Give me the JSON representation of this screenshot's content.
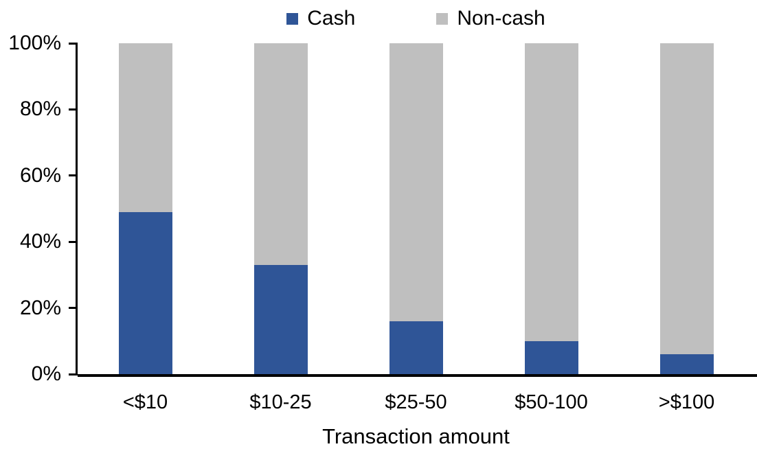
{
  "chart_data": {
    "type": "bar",
    "subtype": "stacked-100",
    "title": "",
    "xlabel": "Transaction amount",
    "ylabel": "",
    "categories": [
      "<$10",
      "$10-25",
      "$25-50",
      "$50-100",
      ">$100"
    ],
    "series": [
      {
        "name": "Cash",
        "color": "#2F5597",
        "values": [
          49,
          33,
          16,
          10,
          6
        ]
      },
      {
        "name": "Non-cash",
        "color": "#BFBFBF",
        "values": [
          51,
          67,
          84,
          90,
          94
        ]
      }
    ],
    "stack_total": 100,
    "ylim": [
      0,
      100
    ],
    "y_ticks": [
      {
        "value": 0,
        "label": "0%"
      },
      {
        "value": 20,
        "label": "20%"
      },
      {
        "value": 40,
        "label": "40%"
      },
      {
        "value": 60,
        "label": "60%"
      },
      {
        "value": 80,
        "label": "80%"
      },
      {
        "value": 100,
        "label": "100%"
      }
    ],
    "legend_position": "top",
    "grid": false
  },
  "colors": {
    "background": "#FFFFFF",
    "axis": "#000000",
    "text": "#000000",
    "cash": "#2F5597",
    "noncash": "#BFBFBF"
  }
}
